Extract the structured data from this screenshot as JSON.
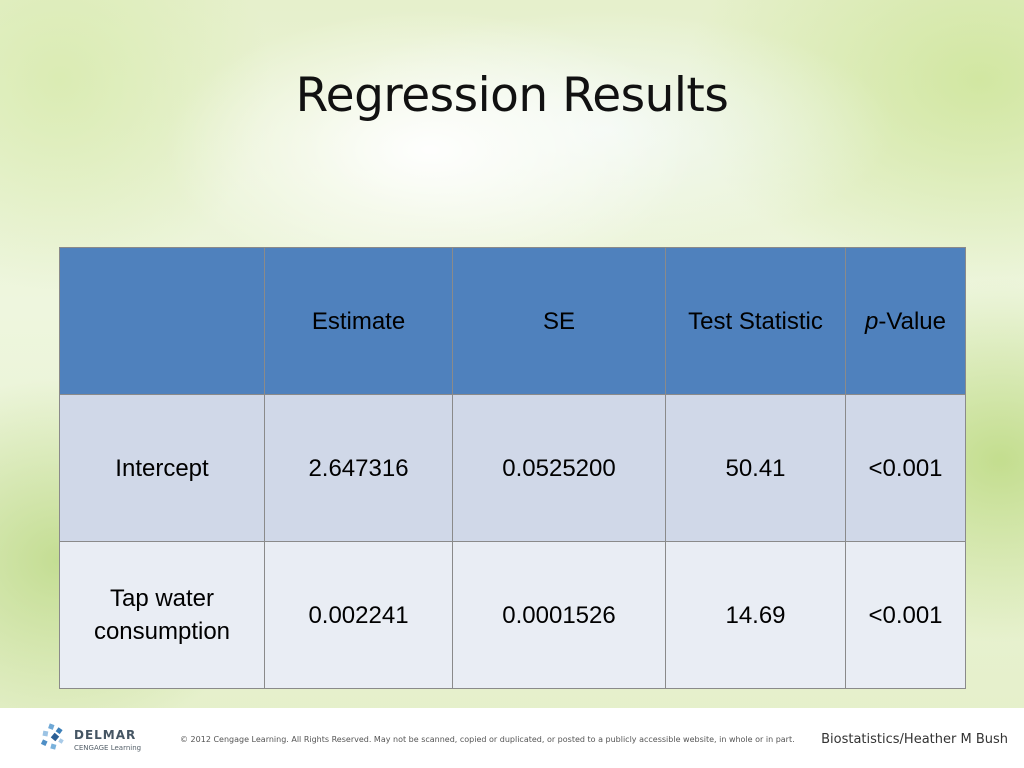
{
  "slide": {
    "title": "Regression Results"
  },
  "table": {
    "headers": {
      "blank": "",
      "estimate": "Estimate",
      "se": "SE",
      "test_statistic": "Test Statistic",
      "p_value_italic": "p",
      "p_value_rest": "-Value"
    },
    "rows": [
      {
        "label": "Intercept",
        "estimate": "2.647316",
        "se": "0.0525200",
        "test_statistic": "50.41",
        "p_value": "<0.001"
      },
      {
        "label_line1": "Tap water",
        "label_line2": "consumption",
        "estimate": "0.002241",
        "se": "0.0001526",
        "test_statistic": "14.69",
        "p_value": "<0.001"
      }
    ]
  },
  "footer": {
    "logo_name": "DELMAR",
    "logo_sub": "CENGAGE Learning",
    "copyright": "© 2012 Cengage Learning. All Rights Reserved. May not be scanned, copied or duplicated, or posted to a publicly accessible website, in whole or in part.",
    "credit": "Biostatistics/Heather M Bush"
  },
  "colors": {
    "header_blue": "#4f81bd",
    "row_band_1": "#d0d8e8",
    "row_band_2": "#e9edf4"
  }
}
